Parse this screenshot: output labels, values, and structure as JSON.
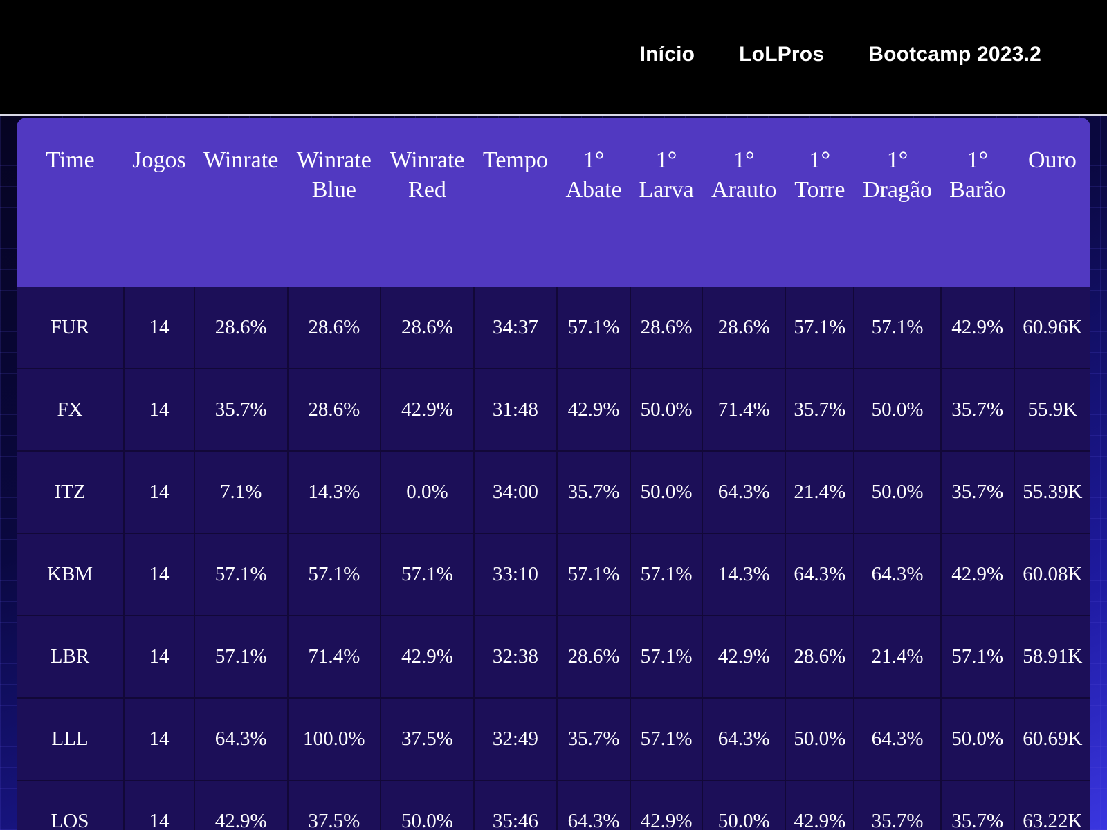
{
  "nav": {
    "links": [
      "Início",
      "LoLPros",
      "Bootcamp 2023.2"
    ]
  },
  "colors": {
    "navbar_bg": "#000000",
    "header_bg": "#5139c1",
    "row_bg": "#1c0f58",
    "text": "#ffffff"
  },
  "table": {
    "headers": [
      "Time",
      "Jogos",
      "Winrate",
      "Winrate Blue",
      "Winrate Red",
      "Tempo",
      "1° Abate",
      "1° Larva",
      "1° Arauto",
      "1° Torre",
      "1° Dragão",
      "1° Barão",
      "Ouro"
    ],
    "rows": [
      [
        "FUR",
        "14",
        "28.6%",
        "28.6%",
        "28.6%",
        "34:37",
        "57.1%",
        "28.6%",
        "28.6%",
        "57.1%",
        "57.1%",
        "42.9%",
        "60.96K"
      ],
      [
        "FX",
        "14",
        "35.7%",
        "28.6%",
        "42.9%",
        "31:48",
        "42.9%",
        "50.0%",
        "71.4%",
        "35.7%",
        "50.0%",
        "35.7%",
        "55.9K"
      ],
      [
        "ITZ",
        "14",
        "7.1%",
        "14.3%",
        "0.0%",
        "34:00",
        "35.7%",
        "50.0%",
        "64.3%",
        "21.4%",
        "50.0%",
        "35.7%",
        "55.39K"
      ],
      [
        "KBM",
        "14",
        "57.1%",
        "57.1%",
        "57.1%",
        "33:10",
        "57.1%",
        "57.1%",
        "14.3%",
        "64.3%",
        "64.3%",
        "42.9%",
        "60.08K"
      ],
      [
        "LBR",
        "14",
        "57.1%",
        "71.4%",
        "42.9%",
        "32:38",
        "28.6%",
        "57.1%",
        "42.9%",
        "28.6%",
        "21.4%",
        "57.1%",
        "58.91K"
      ],
      [
        "LLL",
        "14",
        "64.3%",
        "100.0%",
        "37.5%",
        "32:49",
        "35.7%",
        "57.1%",
        "64.3%",
        "50.0%",
        "64.3%",
        "50.0%",
        "60.69K"
      ],
      [
        "LOS",
        "14",
        "42.9%",
        "37.5%",
        "50.0%",
        "35:46",
        "64.3%",
        "42.9%",
        "50.0%",
        "42.9%",
        "35.7%",
        "35.7%",
        "63.22K"
      ]
    ]
  }
}
